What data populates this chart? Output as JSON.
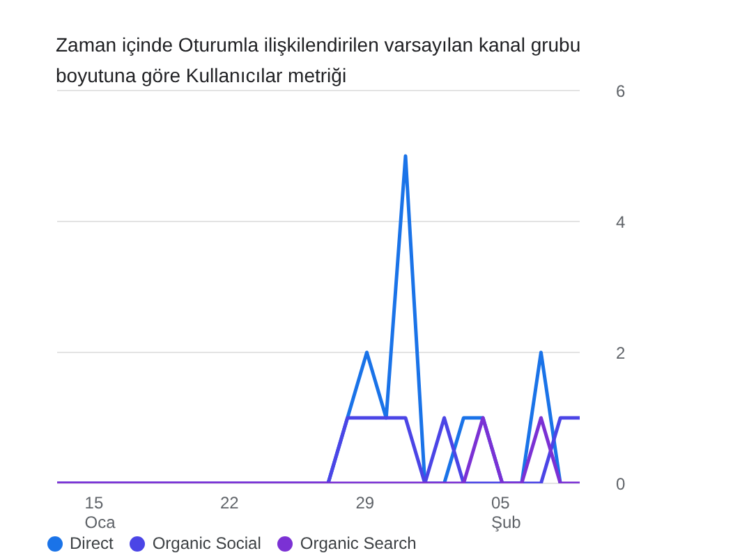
{
  "chart_data": {
    "type": "line",
    "title": "Zaman içinde Oturumla ilişkilendirilen varsayılan kanal grubu boyutuna göre Kullanıcılar metriği",
    "categories": [
      null,
      null,
      "15\nOca",
      null,
      null,
      null,
      null,
      null,
      null,
      "22",
      null,
      null,
      null,
      null,
      null,
      null,
      "29",
      null,
      null,
      null,
      null,
      null,
      null,
      "05\nŞub",
      null,
      null,
      null,
      null
    ],
    "series": [
      {
        "name": "Direct",
        "color": "#1a73e8",
        "values": [
          null,
          null,
          null,
          null,
          null,
          null,
          null,
          null,
          null,
          null,
          null,
          null,
          null,
          null,
          0,
          1,
          2,
          1,
          5,
          0,
          0,
          1,
          1,
          0,
          0,
          2,
          0,
          null
        ]
      },
      {
        "name": "Organic Social",
        "color": "#4b45e6",
        "values": [
          0,
          0,
          0,
          0,
          0,
          0,
          0,
          0,
          0,
          0,
          0,
          0,
          0,
          0,
          0,
          1,
          1,
          1,
          1,
          0,
          1,
          0,
          0,
          0,
          0,
          0,
          1,
          1
        ]
      },
      {
        "name": "Organic Search",
        "color": "#7b31d4",
        "values": [
          0,
          0,
          0,
          0,
          0,
          0,
          0,
          0,
          0,
          0,
          0,
          0,
          0,
          0,
          0,
          0,
          0,
          0,
          0,
          0,
          0,
          0,
          1,
          0,
          0,
          1,
          0,
          0
        ]
      }
    ],
    "ylim": [
      0,
      6
    ],
    "yticks": [
      0,
      2,
      4,
      6
    ],
    "grid": "y",
    "legend": "bottom",
    "marker": "none",
    "line_style": "solid"
  }
}
